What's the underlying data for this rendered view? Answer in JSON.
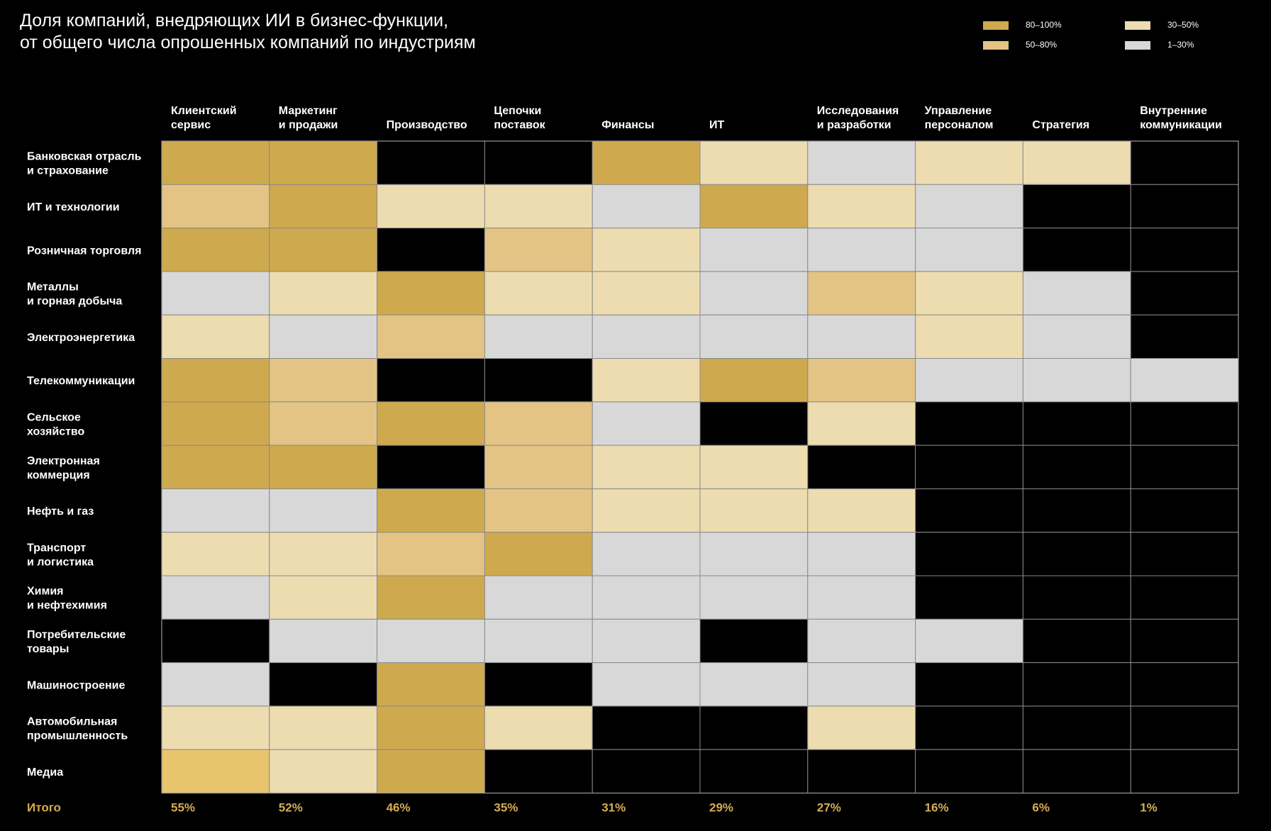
{
  "title": "Доля компаний, внедряющих ИИ в бизнес-функции,\nот общего числа опрошенных компаний по индустриям",
  "legend": [
    {
      "label": "80–100%",
      "color": "#cfa94e"
    },
    {
      "label": "50–80%",
      "color": "#e3c485"
    },
    {
      "label": "30–50%",
      "color": "#ecdcb0"
    },
    {
      "label": "1–30%",
      "color": "#d8d8d8"
    }
  ],
  "chart_data": {
    "type": "heatmap",
    "title": "Доля компаний, внедряющих ИИ в бизнес-функции, от общего числа опрошенных компаний по индустриям",
    "columns": [
      "Клиентский\nсервис",
      "Маркетинг\nи продажи",
      "Производство",
      "Цепочки\nпоставок",
      "Финансы",
      "ИТ",
      "Исследования\nи разработки",
      "Управление\nперсоналом",
      "Стратегия",
      "Внутренние\nкоммуникации"
    ],
    "rows": [
      "Банковская отрасль\nи страхование",
      "ИТ и технологии",
      "Розничная торговля",
      "Металлы\nи горная добыча",
      "Электроэнергетика",
      "Телекоммуникации",
      "Сельское\nхозяйство",
      "Электронная\nкоммерция",
      "Нефть и газ",
      "Транспорт\nи логистика",
      "Химия\nи нефтехимия",
      "Потребительские\nтовары",
      "Машиностроение",
      "Автомобильная\nпромышленность",
      "Медиа"
    ],
    "categories": [
      "0",
      "1–30%",
      "30–50%",
      "50–80%",
      "80–100%"
    ],
    "category_colors": [
      "#000000",
      "#d8d8d8",
      "#ecdcb0",
      "#e3c485",
      "#cfa94e"
    ],
    "values": [
      [
        4,
        4,
        0,
        0,
        4,
        2,
        1,
        2,
        2,
        0
      ],
      [
        3,
        4,
        2,
        2,
        1,
        4,
        2,
        1,
        0,
        0
      ],
      [
        4,
        4,
        0,
        3,
        2,
        1,
        1,
        1,
        0,
        0
      ],
      [
        1,
        2,
        4,
        2,
        2,
        1,
        3,
        2,
        1,
        0
      ],
      [
        2,
        1,
        3,
        1,
        1,
        1,
        1,
        2,
        1,
        0
      ],
      [
        4,
        3,
        0,
        0,
        2,
        4,
        3,
        1,
        1,
        1
      ],
      [
        4,
        3,
        4,
        3,
        1,
        0,
        2,
        0,
        0,
        0
      ],
      [
        4,
        4,
        0,
        3,
        2,
        2,
        0,
        0,
        0,
        0
      ],
      [
        1,
        1,
        4,
        3,
        2,
        2,
        2,
        0,
        0,
        0
      ],
      [
        2,
        2,
        3,
        4,
        1,
        1,
        1,
        0,
        0,
        0
      ],
      [
        1,
        2,
        4,
        1,
        1,
        1,
        1,
        0,
        0,
        0
      ],
      [
        0,
        1,
        1,
        1,
        1,
        0,
        1,
        1,
        0,
        0
      ],
      [
        1,
        0,
        4,
        0,
        1,
        1,
        1,
        0,
        0,
        0
      ],
      [
        2,
        2,
        4,
        2,
        0,
        0,
        2,
        0,
        0,
        0
      ],
      [
        4,
        2,
        4,
        0,
        0,
        0,
        0,
        0,
        0,
        0
      ]
    ],
    "totals_label": "Итого",
    "totals": [
      "55%",
      "52%",
      "46%",
      "35%",
      "31%",
      "29%",
      "27%",
      "16%",
      "6%",
      "1%"
    ],
    "totals_color": "#d4ad55",
    "media_first_cell_color": "#e8c56c",
    "grid": true
  }
}
